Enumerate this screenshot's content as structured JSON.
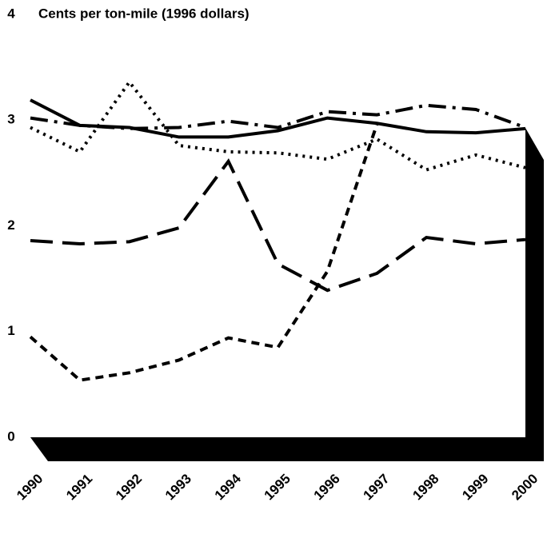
{
  "chart_data": {
    "type": "line",
    "title": "Cents per ton-mile (1996 dollars)",
    "categories": [
      "1990",
      "1991",
      "1992",
      "1993",
      "1994",
      "1995",
      "1996",
      "1997",
      "1998",
      "1999",
      "2000"
    ],
    "ylim": [
      0,
      4
    ],
    "yticks": [
      0,
      1,
      2,
      3,
      4
    ],
    "grid": false,
    "series": [
      {
        "color": "#000000",
        "dash": "solid",
        "values": [
          3.19,
          2.95,
          2.93,
          2.84,
          2.84,
          2.9,
          3.02,
          2.97,
          2.89,
          2.88,
          2.92
        ]
      },
      {
        "color": "#000000",
        "dash": "dashdot",
        "values": [
          3.02,
          2.95,
          2.92,
          2.93,
          2.99,
          2.93,
          3.08,
          3.05,
          3.14,
          3.1,
          2.93
        ]
      },
      {
        "color": "#000000",
        "dash": "dotted",
        "values": [
          2.93,
          2.7,
          3.36,
          2.76,
          2.7,
          2.69,
          2.63,
          2.82,
          2.53,
          2.67,
          2.55
        ]
      },
      {
        "color": "#000000",
        "dash": "longdash",
        "values": [
          1.86,
          1.83,
          1.85,
          1.98,
          2.61,
          1.64,
          1.39,
          1.55,
          1.89,
          1.83,
          1.87
        ]
      },
      {
        "color": "#000000",
        "dash": "shortdash",
        "values": [
          0.95,
          0.54,
          0.61,
          0.73,
          0.94,
          0.85,
          1.57,
          2.96,
          null,
          null,
          null
        ]
      }
    ]
  }
}
